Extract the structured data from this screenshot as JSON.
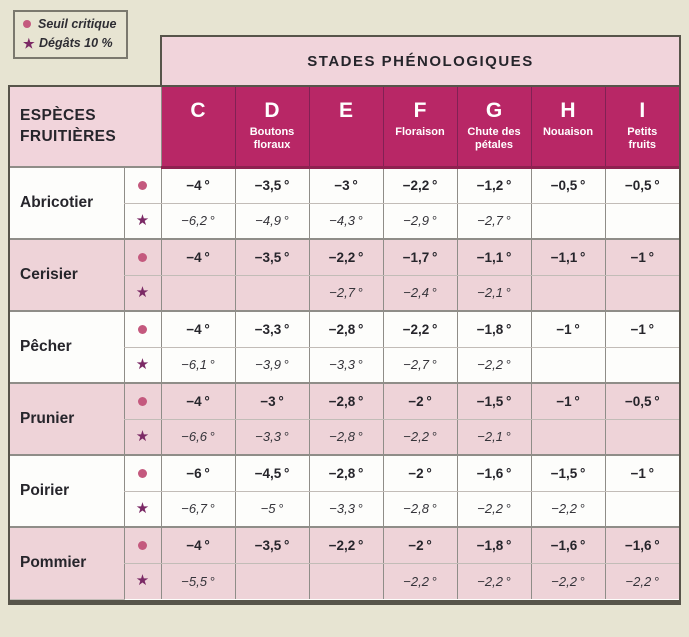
{
  "colors": {
    "canvas_beige": "#e7e4d2",
    "header_light_pink": "#f1d4db",
    "header_magenta": "#b82766",
    "row_pink": "#eed3d8",
    "row_white": "#fdfdfb",
    "bullet_pink": "#c4597e",
    "star_purple": "#7b2965",
    "grid_gray": "#8f8d88",
    "frame_dark": "#57544a",
    "header_rule_crimson": "#8e2150"
  },
  "markers": {
    "star": "★"
  },
  "legend": {
    "items": [
      {
        "marker": "bullet",
        "label": "Seuil critique"
      },
      {
        "marker": "star",
        "label": "Dégâts 10 %"
      }
    ]
  },
  "table": {
    "main_header": "STADES PHÉNOLOGIQUES",
    "species_header": "ESPÈCES FRUITIÈRES",
    "columns": [
      {
        "letter": "C",
        "sublabel": ""
      },
      {
        "letter": "D",
        "sublabel": "Boutons floraux"
      },
      {
        "letter": "E",
        "sublabel": ""
      },
      {
        "letter": "F",
        "sublabel": "Floraison"
      },
      {
        "letter": "G",
        "sublabel": "Chute des pétales"
      },
      {
        "letter": "H",
        "sublabel": "Nouaison"
      },
      {
        "letter": "I",
        "sublabel": "Petits fruits"
      }
    ],
    "rows": [
      {
        "species": "Abricotier",
        "seuil_critique": [
          "−4 °",
          "−3,5 °",
          "−3 °",
          "−2,2 °",
          "−1,2 °",
          "−0,5 °",
          "−0,5 °"
        ],
        "degats_10": [
          "−6,2 °",
          "−4,9 °",
          "−4,3 °",
          "−2,9 °",
          "−2,7 °",
          "",
          ""
        ]
      },
      {
        "species": "Cerisier",
        "seuil_critique": [
          "−4 °",
          "−3,5 °",
          "−2,2 °",
          "−1,7 °",
          "−1,1 °",
          "−1,1 °",
          "−1 °"
        ],
        "degats_10": [
          "",
          "",
          "−2,7 °",
          "−2,4 °",
          "−2,1 °",
          "",
          ""
        ]
      },
      {
        "species": "Pêcher",
        "seuil_critique": [
          "−4 °",
          "−3,3 °",
          "−2,8 °",
          "−2,2 °",
          "−1,8 °",
          "−1 °",
          "−1 °"
        ],
        "degats_10": [
          "−6,1 °",
          "−3,9 °",
          "−3,3 °",
          "−2,7 °",
          "−2,2 °",
          "",
          ""
        ]
      },
      {
        "species": "Prunier",
        "seuil_critique": [
          "−4 °",
          "−3 °",
          "−2,8 °",
          "−2 °",
          "−1,5 °",
          "−1 °",
          "−0,5 °"
        ],
        "degats_10": [
          "−6,6 °",
          "−3,3 °",
          "−2,8 °",
          "−2,2 °",
          "−2,1 °",
          "",
          ""
        ]
      },
      {
        "species": "Poirier",
        "seuil_critique": [
          "−6 °",
          "−4,5 °",
          "−2,8 °",
          "−2 °",
          "−1,6 °",
          "−1,5 °",
          "−1 °"
        ],
        "degats_10": [
          "−6,7 °",
          "−5 °",
          "−3,3 °",
          "−2,8 °",
          "−2,2 °",
          "−2,2 °",
          ""
        ]
      },
      {
        "species": "Pommier",
        "seuil_critique": [
          "−4 °",
          "−3,5 °",
          "−2,2 °",
          "−2 °",
          "−1,8 °",
          "−1,6 °",
          "−1,6 °"
        ],
        "degats_10": [
          "−5,5 °",
          "",
          "",
          "−2,2 °",
          "−2,2 °",
          "−2,2 °",
          "−2,2 °"
        ]
      }
    ]
  }
}
